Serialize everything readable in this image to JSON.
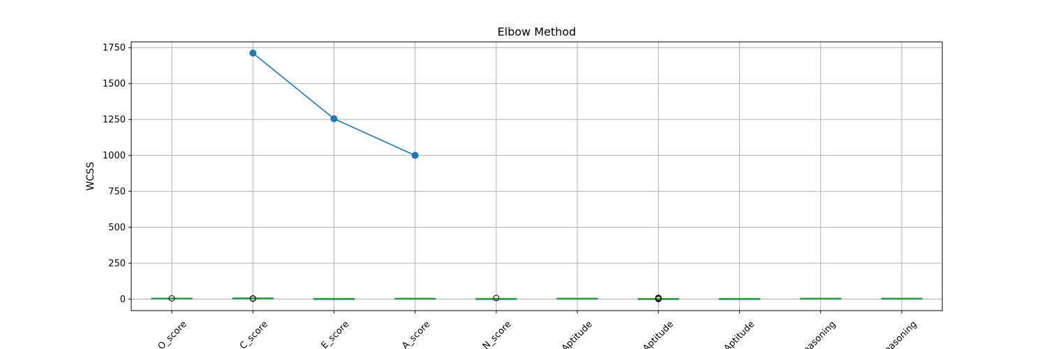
{
  "chart_data": {
    "type": "line",
    "title": "Elbow Method",
    "xlabel": "",
    "ylabel": "WCSS",
    "ylim": [
      -80,
      1790
    ],
    "yticks": [
      0,
      250,
      500,
      750,
      1000,
      1250,
      1500,
      1750
    ],
    "grid": true,
    "categories": [
      "O_score",
      "C_score",
      "E_score",
      "A_score",
      "N_score",
      "Aptitude",
      "Aptitude",
      "Aptitude",
      "Reasoning",
      "Reasoning"
    ],
    "tick_labels": [
      "O_score",
      "C_score",
      "E_score",
      "A_score",
      "N_score",
      "Aptitude",
      "Aptitude",
      "Aptitude",
      "Reasoning",
      "Reasoning"
    ],
    "line_series": {
      "x": [
        2,
        3,
        4
      ],
      "values": [
        1712,
        1255,
        1000
      ],
      "color": "#1f77b4"
    },
    "boxplots": [
      {
        "category": "O_score",
        "q1": 3,
        "median": 5,
        "q3": 7,
        "outliers": [
          5
        ],
        "color": "#2ca02c"
      },
      {
        "category": "C_score",
        "q1": 4,
        "median": 6,
        "q3": 8,
        "outliers": [
          3,
          4,
          5
        ],
        "color": "#2ca02c"
      },
      {
        "category": "E_score",
        "q1": 2,
        "median": 3,
        "q3": 4,
        "outliers": [],
        "color": "#2ca02c"
      },
      {
        "category": "A_score",
        "q1": 3,
        "median": 4,
        "q3": 6,
        "outliers": [],
        "color": "#2ca02c"
      },
      {
        "category": "N_score",
        "q1": 2,
        "median": 3,
        "q3": 4,
        "outliers": [
          8
        ],
        "color": "#2ca02c"
      },
      {
        "category": "Aptitude",
        "q1": 3,
        "median": 4,
        "q3": 6,
        "outliers": [],
        "color": "#2ca02c"
      },
      {
        "category": "Aptitude",
        "q1": 1,
        "median": 2,
        "q3": 4,
        "outliers": [
          1,
          2,
          3,
          4,
          5,
          6,
          7,
          8,
          9
        ],
        "color": "#2ca02c"
      },
      {
        "category": "Aptitude",
        "q1": 2,
        "median": 3,
        "q3": 4,
        "outliers": [],
        "color": "#2ca02c"
      },
      {
        "category": "Reasoning",
        "q1": 3,
        "median": 4,
        "q3": 6,
        "outliers": [],
        "color": "#2ca02c"
      },
      {
        "category": "Reasoning",
        "q1": 3,
        "median": 4,
        "q3": 6,
        "outliers": [],
        "color": "#2ca02c"
      }
    ]
  },
  "colors": {
    "line": "#1f77b4",
    "grid": "#b0b0b0",
    "box": "#2ca02c",
    "axes": "#000000"
  }
}
